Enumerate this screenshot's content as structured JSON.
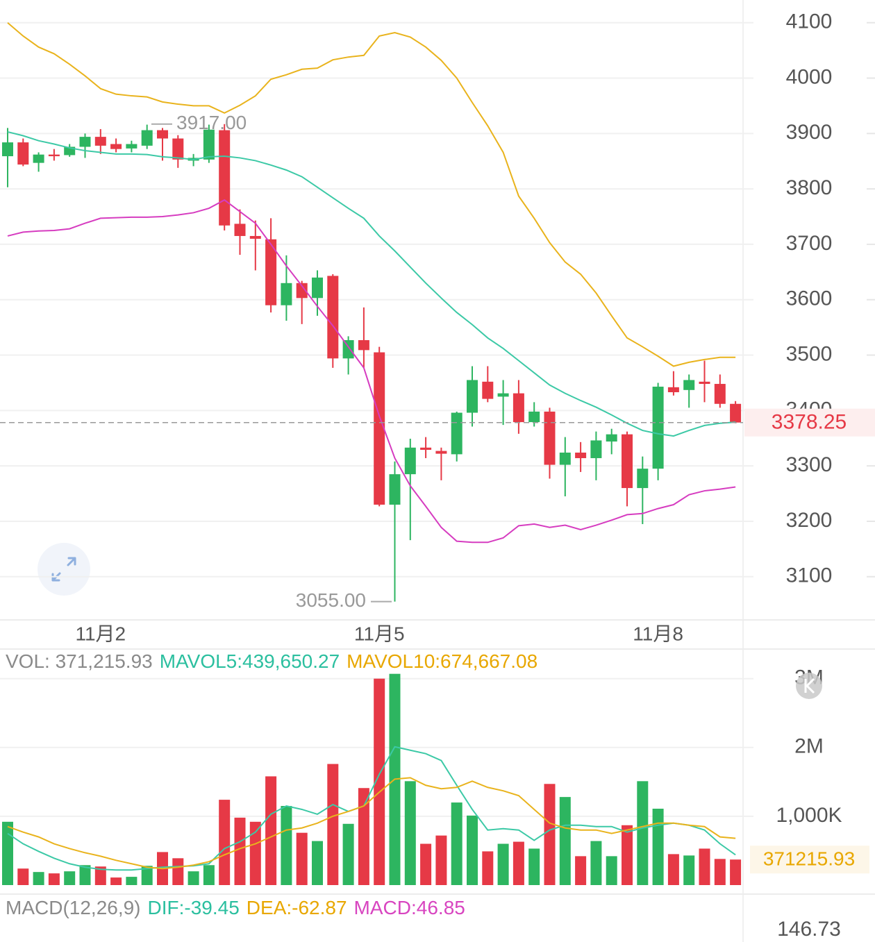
{
  "chart_data": [
    {
      "type": "candlestick",
      "categories": [
        null,
        null,
        null,
        null,
        null,
        null,
        "11月2",
        null,
        null,
        null,
        null,
        null,
        null,
        null,
        null,
        null,
        null,
        null,
        null,
        null,
        null,
        null,
        null,
        null,
        "11月5",
        null,
        null,
        null,
        null,
        null,
        null,
        null,
        null,
        null,
        null,
        null,
        null,
        null,
        null,
        null,
        null,
        null,
        "11月8",
        null,
        null,
        null,
        null,
        null
      ],
      "open": [
        3859,
        3884,
        3847,
        3862,
        3861,
        3876,
        3894,
        3881,
        3873,
        3878,
        3906,
        3891,
        3851,
        3853,
        3906,
        3737,
        3715,
        3709,
        3590,
        3630,
        3603,
        3643,
        3494,
        3527,
        3505,
        3230,
        3285,
        3333,
        3327,
        3321,
        3396,
        3452,
        3425,
        3431,
        3379,
        3398,
        3302,
        3324,
        3314,
        3344,
        3357,
        3260,
        3295,
        3442,
        3437,
        3452,
        3448,
        3412
      ],
      "high": [
        3910,
        3891,
        3866,
        3872,
        3881,
        3900,
        3908,
        3891,
        3887,
        3916,
        3910,
        3897,
        3863,
        3916,
        3917,
        3763,
        3743,
        3747,
        3680,
        3634,
        3653,
        3646,
        3534,
        3586,
        3515,
        3308,
        3349,
        3352,
        3333,
        3398,
        3480,
        3480,
        3455,
        3455,
        3415,
        3405,
        3352,
        3343,
        3362,
        3367,
        3362,
        3317,
        3450,
        3471,
        3465,
        3490,
        3465,
        3417
      ],
      "low": [
        3803,
        3841,
        3831,
        3851,
        3858,
        3856,
        3863,
        3866,
        3866,
        3872,
        3851,
        3838,
        3841,
        3847,
        3725,
        3681,
        3653,
        3577,
        3562,
        3556,
        3571,
        3477,
        3465,
        3477,
        3227,
        3055,
        3166,
        3314,
        3274,
        3308,
        3371,
        3415,
        3374,
        3358,
        3371,
        3277,
        3245,
        3289,
        3274,
        3321,
        3227,
        3195,
        3274,
        3427,
        3405,
        3415,
        3405,
        3377
      ],
      "close": [
        3884,
        3844,
        3862,
        3859,
        3876,
        3894,
        3878,
        3872,
        3881,
        3906,
        3891,
        3853,
        3856,
        3907,
        3734,
        3715,
        3710,
        3590,
        3630,
        3603,
        3640,
        3494,
        3527,
        3509,
        3230,
        3285,
        3333,
        3329,
        3322,
        3396,
        3455,
        3421,
        3431,
        3379,
        3398,
        3302,
        3324,
        3314,
        3346,
        3357,
        3260,
        3295,
        3443,
        3433,
        3455,
        3448,
        3412,
        3378.25
      ],
      "up_color": "#2db560",
      "down_color": "#e63946",
      "lines": [
        {
          "color": "#e9b31c",
          "values": [
            4100,
            4076,
            4056,
            4044,
            4025,
            4004,
            3981,
            3971,
            3968,
            3966,
            3957,
            3953,
            3950,
            3950,
            3937,
            3951,
            3968,
            3998,
            4006,
            4016,
            4018,
            4033,
            4038,
            4041,
            4076,
            4082,
            4074,
            4056,
            4032,
            4000,
            3956,
            3914,
            3866,
            3787,
            3747,
            3703,
            3668,
            3646,
            3612,
            3571,
            3531,
            3515,
            3498,
            3480,
            3487,
            3492,
            3496,
            3496
          ]
        },
        {
          "color": "#3cc9a6",
          "values": [
            3903,
            3896,
            3887,
            3881,
            3874,
            3869,
            3866,
            3863,
            3863,
            3862,
            3858,
            3856,
            3853,
            3858,
            3859,
            3856,
            3851,
            3843,
            3834,
            3822,
            3803,
            3784,
            3765,
            3747,
            3715,
            3688,
            3659,
            3630,
            3603,
            3577,
            3555,
            3531,
            3512,
            3490,
            3468,
            3446,
            3431,
            3418,
            3406,
            3392,
            3377,
            3364,
            3358,
            3354,
            3364,
            3373,
            3377,
            3379
          ]
        },
        {
          "color": "#d63cc0",
          "values": [
            3715,
            3722,
            3724,
            3725,
            3728,
            3738,
            3747,
            3748,
            3749,
            3749,
            3750,
            3753,
            3757,
            3765,
            3780,
            3759,
            3738,
            3700,
            3661,
            3625,
            3588,
            3553,
            3515,
            3477,
            3390,
            3314,
            3264,
            3227,
            3189,
            3164,
            3162,
            3162,
            3170,
            3192,
            3195,
            3189,
            3193,
            3185,
            3193,
            3202,
            3212,
            3214,
            3223,
            3230,
            3248,
            3255,
            3258,
            3262
          ]
        }
      ],
      "annotations": [
        {
          "value": 3917,
          "label": "3917.00"
        },
        {
          "value": 3055,
          "label": "3055.00"
        }
      ],
      "last_price": 3378.25,
      "ylim": [
        3022,
        4141
      ],
      "yticks": [
        3100,
        3200,
        3300,
        3400,
        3500,
        3600,
        3700,
        3800,
        3900,
        4000,
        4100
      ],
      "grid": true
    },
    {
      "type": "bar",
      "legend": [
        {
          "text": "VOL: 371,215.93",
          "color": "#8a8a8a"
        },
        {
          "text": "MAVOL5:439,650.27",
          "color": "#2bbf9f"
        },
        {
          "text": "MAVOL10:674,667.08",
          "color": "#e8a700"
        }
      ],
      "values": [
        920000,
        240000,
        190000,
        170000,
        200000,
        290000,
        270000,
        110000,
        120000,
        280000,
        480000,
        390000,
        200000,
        290000,
        1240000,
        980000,
        920000,
        1580000,
        1150000,
        760000,
        640000,
        1760000,
        890000,
        1410000,
        3000000,
        3070000,
        1510000,
        600000,
        720000,
        1200000,
        1010000,
        490000,
        600000,
        630000,
        530000,
        1470000,
        1280000,
        420000,
        640000,
        420000,
        870000,
        1510000,
        1110000,
        450000,
        430000,
        530000,
        380000,
        371215.93
      ],
      "lines": [
        {
          "color": "#3cc9a6",
          "values": [
            750000,
            600000,
            490000,
            390000,
            310000,
            260000,
            230000,
            220000,
            220000,
            240000,
            260000,
            270000,
            280000,
            310000,
            530000,
            630000,
            770000,
            1030000,
            1150000,
            1100000,
            1030000,
            1170000,
            1070000,
            1150000,
            1610000,
            2010000,
            1960000,
            1910000,
            1810000,
            1450000,
            1100000,
            800000,
            820000,
            800000,
            650000,
            800000,
            870000,
            870000,
            850000,
            850000,
            770000,
            830000,
            870000,
            900000,
            870000,
            800000,
            600000,
            440000
          ]
        },
        {
          "color": "#e9b31c",
          "values": [
            850000,
            770000,
            700000,
            600000,
            530000,
            470000,
            420000,
            360000,
            310000,
            260000,
            240000,
            260000,
            290000,
            340000,
            440000,
            530000,
            600000,
            700000,
            800000,
            830000,
            900000,
            1000000,
            1070000,
            1150000,
            1350000,
            1540000,
            1560000,
            1450000,
            1400000,
            1420000,
            1510000,
            1420000,
            1370000,
            1300000,
            1100000,
            900000,
            830000,
            800000,
            800000,
            750000,
            800000,
            850000,
            900000,
            900000,
            870000,
            850000,
            700000,
            680000
          ]
        }
      ],
      "last_value": 371215.93,
      "ylim": [
        0,
        3430000
      ],
      "yticks": [
        {
          "value": 1000000,
          "label": "1,000K"
        },
        {
          "value": 2000000,
          "label": "2M"
        },
        {
          "value": 3000000,
          "label": "3M"
        }
      ],
      "grid": true
    },
    {
      "type": "macd",
      "legend": [
        {
          "text": "MACD(12,26,9)",
          "color": "#8a8a8a"
        },
        {
          "text": "DIF:-39.45",
          "color": "#2bbf9f"
        },
        {
          "text": "DEA:-62.87",
          "color": "#e8a700"
        },
        {
          "text": "MACD:46.85",
          "color": "#d845c0"
        }
      ],
      "yticks": [
        146.73
      ]
    }
  ]
}
